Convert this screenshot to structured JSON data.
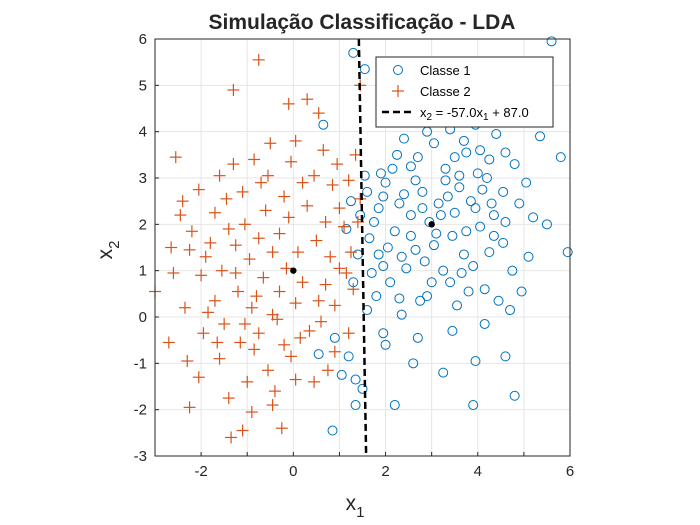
{
  "chart_data": {
    "type": "scatter",
    "title": "Simulação Classificação - LDA",
    "xlabel": {
      "base": "x",
      "sub": "1"
    },
    "ylabel": {
      "base": "x",
      "sub": "2"
    },
    "xlim": [
      -3,
      6
    ],
    "ylim": [
      -3,
      6
    ],
    "xticks": [
      -2,
      0,
      2,
      4,
      6
    ],
    "yticks": [
      -3,
      -2,
      -1,
      0,
      1,
      2,
      3,
      4,
      5,
      6
    ],
    "grid": true,
    "legend_position": "top-right",
    "series": [
      {
        "name": "Classe 1",
        "marker": "circle",
        "color": "#0072BD",
        "points": [
          [
            1.3,
            5.7
          ],
          [
            1.55,
            5.35
          ],
          [
            3.6,
            5.3
          ],
          [
            4.45,
            5.25
          ],
          [
            5.6,
            5.95
          ],
          [
            0.65,
            4.15
          ],
          [
            5.8,
            3.45
          ],
          [
            5.95,
            1.4
          ],
          [
            5.5,
            2.0
          ],
          [
            5.35,
            3.9
          ],
          [
            4.8,
            -1.7
          ],
          [
            3.9,
            -1.9
          ],
          [
            2.2,
            -1.9
          ],
          [
            1.5,
            -1.55
          ],
          [
            1.35,
            -1.35
          ],
          [
            0.85,
            -2.45
          ],
          [
            1.35,
            -1.9
          ],
          [
            3.25,
            -1.2
          ],
          [
            2.6,
            -1.0
          ],
          [
            4.6,
            -0.85
          ],
          [
            3.95,
            -0.95
          ],
          [
            1.2,
            -0.85
          ],
          [
            1.05,
            -1.25
          ],
          [
            0.55,
            -0.8
          ],
          [
            0.9,
            -0.45
          ],
          [
            1.95,
            -0.35
          ],
          [
            2.35,
            0.05
          ],
          [
            2.9,
            0.45
          ],
          [
            3.4,
            0.75
          ],
          [
            4.7,
            0.15
          ],
          [
            4.95,
            0.55
          ],
          [
            5.1,
            1.3
          ],
          [
            5.2,
            2.15
          ],
          [
            4.55,
            2.7
          ],
          [
            3.7,
            3.8
          ],
          [
            2.25,
            3.5
          ],
          [
            1.95,
            2.6
          ],
          [
            1.75,
            2.05
          ],
          [
            1.85,
            1.35
          ],
          [
            2.45,
            1.05
          ],
          [
            3.05,
            1.55
          ],
          [
            3.5,
            2.25
          ],
          [
            4.05,
            1.95
          ],
          [
            4.3,
            2.45
          ],
          [
            4.0,
            3.1
          ],
          [
            3.3,
            3.2
          ],
          [
            2.8,
            2.7
          ],
          [
            2.55,
            2.2
          ],
          [
            3.15,
            2.45
          ],
          [
            3.6,
            2.8
          ],
          [
            4.25,
            3.4
          ],
          [
            4.8,
            3.3
          ],
          [
            4.9,
            2.45
          ],
          [
            4.55,
            1.6
          ],
          [
            3.9,
            1.1
          ],
          [
            3.25,
            1.0
          ],
          [
            2.65,
            1.45
          ],
          [
            2.2,
            1.85
          ],
          [
            2.0,
            2.9
          ],
          [
            2.55,
            3.25
          ],
          [
            3.05,
            3.75
          ],
          [
            3.75,
            3.55
          ],
          [
            4.4,
            3.95
          ],
          [
            4.35,
            2.2
          ],
          [
            3.85,
            2.5
          ],
          [
            3.45,
            1.75
          ],
          [
            2.95,
            2.05
          ],
          [
            2.4,
            2.65
          ],
          [
            1.85,
            2.35
          ],
          [
            1.65,
            1.7
          ],
          [
            2.1,
            0.75
          ],
          [
            2.75,
            0.35
          ],
          [
            3.55,
            0.25
          ],
          [
            4.15,
            0.6
          ],
          [
            4.75,
            1.0
          ],
          [
            4.25,
            1.4
          ],
          [
            3.7,
            1.35
          ],
          [
            2.85,
            1.2
          ],
          [
            1.7,
            0.95
          ],
          [
            1.4,
            1.35
          ],
          [
            1.45,
            2.2
          ],
          [
            1.6,
            2.7
          ],
          [
            1.9,
            3.1
          ],
          [
            2.4,
            3.85
          ],
          [
            2.9,
            4.0
          ],
          [
            3.4,
            4.05
          ],
          [
            3.95,
            4.15
          ],
          [
            4.6,
            3.55
          ],
          [
            5.05,
            2.9
          ],
          [
            4.1,
            2.75
          ],
          [
            3.3,
            2.95
          ],
          [
            2.7,
            3.45
          ],
          [
            2.15,
            3.2
          ],
          [
            1.55,
            3.05
          ],
          [
            1.25,
            2.5
          ],
          [
            1.15,
            1.9
          ],
          [
            1.3,
            0.75
          ],
          [
            1.6,
            0.15
          ],
          [
            2.0,
            -0.6
          ],
          [
            2.7,
            -0.45
          ],
          [
            3.45,
            -0.3
          ],
          [
            4.15,
            -0.15
          ],
          [
            4.45,
            0.35
          ],
          [
            3.0,
            0.75
          ],
          [
            2.3,
            0.4
          ],
          [
            1.8,
            0.45
          ],
          [
            3.8,
            0.55
          ],
          [
            4.6,
            2.05
          ],
          [
            3.95,
            2.35
          ],
          [
            3.35,
            2.6
          ],
          [
            2.8,
            2.35
          ],
          [
            2.3,
            2.45
          ],
          [
            3.6,
            3.05
          ],
          [
            4.2,
            3.0
          ],
          [
            3.1,
            1.8
          ],
          [
            2.55,
            1.75
          ],
          [
            3.75,
            1.85
          ],
          [
            4.35,
            1.75
          ],
          [
            2.05,
            1.5
          ],
          [
            3.2,
            2.2
          ],
          [
            2.65,
            2.95
          ],
          [
            3.5,
            3.45
          ],
          [
            4.05,
            3.6
          ],
          [
            2.35,
            1.3
          ],
          [
            1.95,
            1.1
          ],
          [
            3.65,
            0.95
          ]
        ]
      },
      {
        "name": "Classe 2",
        "marker": "plus",
        "color": "#D95319",
        "points": [
          [
            -0.75,
            5.55
          ],
          [
            -1.3,
            4.9
          ],
          [
            0.3,
            4.7
          ],
          [
            -0.1,
            4.6
          ],
          [
            1.45,
            5.0
          ],
          [
            0.55,
            4.4
          ],
          [
            -2.55,
            3.45
          ],
          [
            -2.4,
            2.5
          ],
          [
            -2.2,
            1.85
          ],
          [
            -2.25,
            1.45
          ],
          [
            -2.6,
            0.95
          ],
          [
            -3.0,
            0.55
          ],
          [
            -2.7,
            -0.55
          ],
          [
            -2.3,
            -0.95
          ],
          [
            -2.25,
            -1.95
          ],
          [
            -1.35,
            -2.6
          ],
          [
            -1.1,
            -2.45
          ],
          [
            -0.25,
            -2.4
          ],
          [
            -0.9,
            -2.05
          ],
          [
            -0.4,
            -1.6
          ],
          [
            0.45,
            -1.4
          ],
          [
            0.75,
            -1.15
          ],
          [
            1.2,
            -0.35
          ],
          [
            0.35,
            -0.3
          ],
          [
            -0.05,
            -0.85
          ],
          [
            -0.55,
            -1.15
          ],
          [
            -1.0,
            -1.4
          ],
          [
            -1.6,
            -0.9
          ],
          [
            -1.95,
            -0.35
          ],
          [
            -1.7,
            0.35
          ],
          [
            -1.55,
            1.0
          ],
          [
            -1.25,
            1.55
          ],
          [
            -1.05,
            2.0
          ],
          [
            -1.45,
            2.55
          ],
          [
            -1.6,
            3.05
          ],
          [
            -1.3,
            3.3
          ],
          [
            -0.85,
            3.4
          ],
          [
            -0.5,
            3.75
          ],
          [
            -0.05,
            3.35
          ],
          [
            0.45,
            3.05
          ],
          [
            0.85,
            2.85
          ],
          [
            1.2,
            2.95
          ],
          [
            1.0,
            2.35
          ],
          [
            1.4,
            2.05
          ],
          [
            1.25,
            1.4
          ],
          [
            1.0,
            1.05
          ],
          [
            0.7,
            0.7
          ],
          [
            0.55,
            0.35
          ],
          [
            0.2,
            0.75
          ],
          [
            -0.15,
            1.05
          ],
          [
            -0.45,
            1.4
          ],
          [
            -0.75,
            1.7
          ],
          [
            -0.95,
            1.25
          ],
          [
            -0.65,
            0.85
          ],
          [
            -0.3,
            0.55
          ],
          [
            0.05,
            0.3
          ],
          [
            -0.9,
            0.2
          ],
          [
            -1.2,
            0.55
          ],
          [
            -1.5,
            -0.15
          ],
          [
            -1.15,
            -0.55
          ],
          [
            -0.75,
            -0.35
          ],
          [
            -0.35,
            -0.05
          ],
          [
            0.15,
            -0.45
          ],
          [
            0.6,
            -0.1
          ],
          [
            0.9,
            0.25
          ],
          [
            1.3,
            0.6
          ],
          [
            -0.1,
            2.15
          ],
          [
            0.3,
            2.4
          ],
          [
            0.7,
            2.05
          ],
          [
            0.5,
            1.65
          ],
          [
            0.1,
            1.4
          ],
          [
            -0.3,
            1.8
          ],
          [
            -0.6,
            2.3
          ],
          [
            -0.2,
            2.6
          ],
          [
            0.2,
            2.9
          ],
          [
            -1.8,
            1.6
          ],
          [
            -2.0,
            0.9
          ],
          [
            -1.85,
            0.1
          ],
          [
            -1.4,
            1.9
          ],
          [
            -1.1,
            2.7
          ],
          [
            -0.7,
            2.9
          ],
          [
            0.95,
            3.3
          ],
          [
            1.35,
            3.5
          ],
          [
            -2.45,
            2.2
          ],
          [
            -2.05,
            2.75
          ],
          [
            -2.65,
            1.5
          ],
          [
            -2.35,
            0.2
          ],
          [
            -1.65,
            -0.55
          ],
          [
            -2.05,
            -1.3
          ],
          [
            -1.4,
            -1.75
          ],
          [
            -0.85,
            -0.7
          ],
          [
            -0.45,
            -1.9
          ],
          [
            0.05,
            -1.35
          ],
          [
            0.9,
            -0.75
          ],
          [
            1.1,
            1.95
          ],
          [
            1.45,
            2.55
          ],
          [
            -1.25,
            0.95
          ],
          [
            -0.8,
            0.45
          ],
          [
            -0.45,
            0.05
          ],
          [
            -1.9,
            1.3
          ],
          [
            -0.55,
            3.05
          ],
          [
            0.05,
            3.8
          ],
          [
            0.65,
            3.6
          ],
          [
            -1.7,
            2.25
          ],
          [
            0.8,
            1.3
          ],
          [
            1.15,
            0.95
          ],
          [
            -0.2,
            -0.6
          ],
          [
            -1.05,
            -0.15
          ]
        ]
      }
    ],
    "decision_line": {
      "name": "x_2 = -57.0x_1 + 87.0",
      "slope": -57.0,
      "intercept": 87.0,
      "style": "dashed",
      "color": "#000000"
    },
    "centroids": [
      [
        3.0,
        2.0
      ],
      [
        0.0,
        1.0
      ]
    ]
  }
}
